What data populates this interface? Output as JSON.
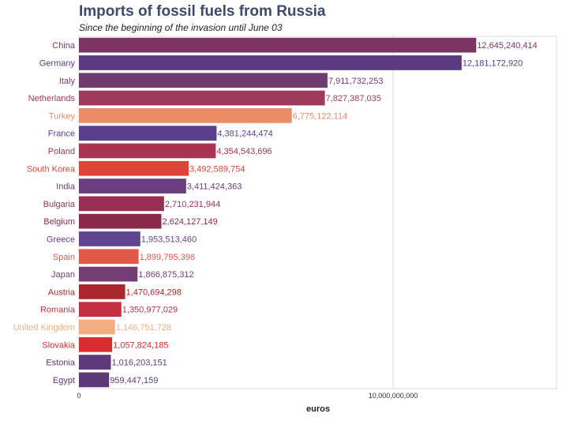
{
  "chart_data": {
    "type": "bar",
    "orientation": "horizontal",
    "title": "Imports of fossil fuels from Russia",
    "subtitle": "Since the beginning of the invasion until June 03",
    "xlabel": "euros",
    "ylabel": "",
    "xlim": [
      0,
      15200000000
    ],
    "xticks": [
      {
        "value": 0,
        "label": "0"
      },
      {
        "value": 10000000000,
        "label": "10,000,000,000"
      }
    ],
    "grid": true,
    "legend": "none",
    "categories": [
      "China",
      "Germany",
      "Italy",
      "Netherlands",
      "Turkey",
      "France",
      "Poland",
      "South Korea",
      "India",
      "Bulgaria",
      "Belgium",
      "Greece",
      "Spain",
      "Japan",
      "Austria",
      "Romania",
      "United Kingdom",
      "Slovakia",
      "Estonia",
      "Egypt"
    ],
    "values": [
      12645240414,
      12181172920,
      7911732253,
      7827387035,
      6775122114,
      4381244474,
      4354543696,
      3492589754,
      3411424363,
      2710231944,
      2624127149,
      1953513460,
      1899795398,
      1866875312,
      1470694298,
      1350977029,
      1146751728,
      1057824185,
      1016203151,
      959447159
    ],
    "value_labels": [
      "12,645,240,414",
      "12,181,172,920",
      "7,911,732,253",
      "7,827,387,035",
      "6,775,122,114",
      "4,381,244,474",
      "4,354,543,696",
      "3,492,589,754",
      "3,411,424,363",
      "2,710,231,944",
      "2,624,127,149",
      "1,953,513,460",
      "1,899,795,398",
      "1,866,875,312",
      "1,470,694,298",
      "1,350,977,029",
      "1,146,751,728",
      "1,057,824,185",
      "1,016,203,151",
      "959,447,159"
    ],
    "colors": [
      "#7c3562",
      "#5b3a82",
      "#6e3d6e",
      "#9e3a5c",
      "#ec8c66",
      "#5a3f8e",
      "#a83450",
      "#dc4537",
      "#6a3c80",
      "#9a2f55",
      "#8a2a4d",
      "#5f4590",
      "#e25848",
      "#723e74",
      "#a8282e",
      "#c13040",
      "#f3ae80",
      "#d82e30",
      "#5e3a7a",
      "#5c3878"
    ]
  }
}
